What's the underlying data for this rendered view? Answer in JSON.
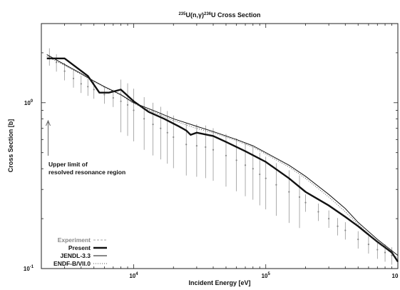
{
  "chart_data": {
    "type": "line",
    "title_parts": {
      "sup1": "235",
      "mid": "U(n,γ)",
      "sup2": "236",
      "end": "U Cross Section"
    },
    "xlabel": "Incident Energy [eV]",
    "ylabel": "Cross Section [b]",
    "x_scale": "log",
    "y_scale": "log",
    "xlim": [
      2000,
      1000000
    ],
    "ylim": [
      0.1,
      3.0
    ],
    "x_ticks": [
      {
        "value": 10000,
        "base": "10",
        "exp": "4"
      },
      {
        "value": 100000,
        "base": "10",
        "exp": "5"
      },
      {
        "value": 1000000,
        "base": "10",
        "exp": ""
      }
    ],
    "y_ticks": [
      {
        "value": 1,
        "base": "10",
        "exp": "0"
      },
      {
        "value": 0.1,
        "base": "10",
        "exp": "-1"
      }
    ],
    "grid": false,
    "legend_position": "bottom-left",
    "annotation": {
      "lines": [
        "Upper limit of",
        "resolved resonance region"
      ],
      "arrow_x": 2250
    },
    "series": [
      {
        "name": "Experiment",
        "style": "points-with-errorbars",
        "color": "#888888",
        "points": [
          [
            2300,
            1.9
          ],
          [
            2600,
            1.75
          ],
          [
            3000,
            1.55
          ],
          [
            3500,
            1.4
          ],
          [
            4000,
            1.3
          ],
          [
            4500,
            1.25
          ],
          [
            5000,
            1.2
          ],
          [
            6000,
            1.12
          ],
          [
            7000,
            1.07
          ],
          [
            8000,
            1.02
          ],
          [
            9000,
            0.97
          ],
          [
            10000,
            0.9
          ],
          [
            12000,
            0.8
          ],
          [
            14000,
            0.74
          ],
          [
            16000,
            0.7
          ],
          [
            18000,
            0.66
          ],
          [
            20000,
            0.62
          ],
          [
            25000,
            0.56
          ],
          [
            30000,
            0.55
          ],
          [
            35000,
            0.54
          ],
          [
            40000,
            0.52
          ],
          [
            50000,
            0.48
          ],
          [
            60000,
            0.45
          ],
          [
            70000,
            0.42
          ],
          [
            80000,
            0.4
          ],
          [
            90000,
            0.37
          ],
          [
            100000,
            0.35
          ],
          [
            120000,
            0.32
          ],
          [
            150000,
            0.29
          ],
          [
            180000,
            0.27
          ],
          [
            200000,
            0.25
          ],
          [
            250000,
            0.22
          ],
          [
            300000,
            0.2
          ],
          [
            350000,
            0.18
          ],
          [
            400000,
            0.17
          ],
          [
            500000,
            0.15
          ],
          [
            600000,
            0.14
          ],
          [
            700000,
            0.13
          ],
          [
            800000,
            0.125
          ],
          [
            900000,
            0.12
          ]
        ]
      },
      {
        "name": "Present",
        "style": "thick-line",
        "color": "#111111",
        "points": [
          [
            2200,
            1.85
          ],
          [
            3000,
            1.85
          ],
          [
            4500,
            1.45
          ],
          [
            5500,
            1.15
          ],
          [
            6500,
            1.15
          ],
          [
            8000,
            1.2
          ],
          [
            10000,
            1.02
          ],
          [
            13000,
            0.88
          ],
          [
            17000,
            0.8
          ],
          [
            22000,
            0.72
          ],
          [
            25000,
            0.68
          ],
          [
            27000,
            0.64
          ],
          [
            30000,
            0.66
          ],
          [
            40000,
            0.63
          ],
          [
            50000,
            0.58
          ],
          [
            70000,
            0.51
          ],
          [
            100000,
            0.44
          ],
          [
            150000,
            0.35
          ],
          [
            200000,
            0.29
          ],
          [
            300000,
            0.24
          ],
          [
            400000,
            0.205
          ],
          [
            500000,
            0.18
          ],
          [
            600000,
            0.16
          ],
          [
            700000,
            0.145
          ],
          [
            900000,
            0.125
          ],
          [
            1000000,
            0.11
          ]
        ]
      },
      {
        "name": "JENDL-3.3",
        "style": "thin-line",
        "color": "#111111",
        "points": [
          [
            2200,
            1.95
          ],
          [
            3000,
            1.7
          ],
          [
            4000,
            1.5
          ],
          [
            5000,
            1.35
          ],
          [
            6000,
            1.25
          ],
          [
            8000,
            1.12
          ],
          [
            10000,
            1.0
          ],
          [
            15000,
            0.88
          ],
          [
            20000,
            0.8
          ],
          [
            30000,
            0.72
          ],
          [
            40000,
            0.67
          ],
          [
            60000,
            0.6
          ],
          [
            80000,
            0.55
          ],
          [
            100000,
            0.5
          ],
          [
            150000,
            0.42
          ],
          [
            200000,
            0.36
          ],
          [
            300000,
            0.28
          ],
          [
            400000,
            0.23
          ],
          [
            500000,
            0.19
          ],
          [
            700000,
            0.15
          ],
          [
            1000000,
            0.12
          ]
        ]
      },
      {
        "name": "ENDF-B/VII.0",
        "style": "dotted-line",
        "color": "#555555",
        "points": [
          [
            2200,
            1.9
          ],
          [
            3000,
            1.68
          ],
          [
            4000,
            1.48
          ],
          [
            5000,
            1.34
          ],
          [
            6000,
            1.24
          ],
          [
            8000,
            1.11
          ],
          [
            10000,
            0.99
          ],
          [
            15000,
            0.86
          ],
          [
            20000,
            0.78
          ],
          [
            30000,
            0.7
          ],
          [
            40000,
            0.66
          ],
          [
            60000,
            0.59
          ],
          [
            80000,
            0.54
          ],
          [
            100000,
            0.49
          ],
          [
            150000,
            0.41
          ],
          [
            200000,
            0.35
          ],
          [
            300000,
            0.27
          ],
          [
            400000,
            0.22
          ],
          [
            500000,
            0.185
          ],
          [
            700000,
            0.145
          ],
          [
            1000000,
            0.115
          ]
        ]
      }
    ]
  }
}
